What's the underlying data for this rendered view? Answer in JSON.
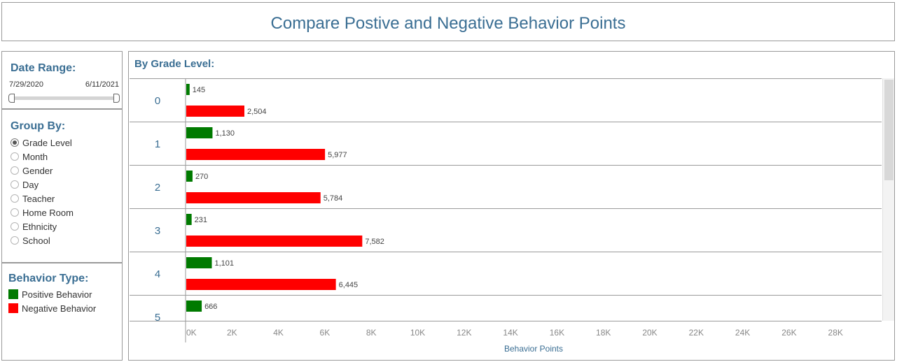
{
  "title": "Compare Postive and Negative Behavior Points",
  "date_range": {
    "label": "Date Range:",
    "start": "7/29/2020",
    "end": "6/11/2021",
    "selected_range": [
      0,
      1
    ]
  },
  "group_by": {
    "label": "Group By:",
    "options": [
      "Grade Level",
      "Month",
      "Gender",
      "Day",
      "Teacher",
      "Home Room",
      "Ethnicity",
      "School"
    ],
    "selected": "Grade Level"
  },
  "behavior_type": {
    "label": "Behavior Type:",
    "items": [
      {
        "label": "Positive Behavior",
        "color": "#007a00"
      },
      {
        "label": "Negative Behavior",
        "color": "#ff0000"
      }
    ]
  },
  "chart": {
    "subtitle": "By Grade Level:"
  },
  "scroll": {
    "thumb_fraction": 0.42,
    "position": 0
  },
  "chart_data": {
    "type": "bar",
    "orientation": "horizontal",
    "categories": [
      "0",
      "1",
      "2",
      "3",
      "4",
      "5"
    ],
    "series": [
      {
        "name": "Positive Behavior",
        "color": "#007a00",
        "values": [
          145,
          1130,
          270,
          231,
          1101,
          666
        ]
      },
      {
        "name": "Negative Behavior",
        "color": "#ff0000",
        "values": [
          2504,
          5977,
          5784,
          7582,
          6445,
          null
        ]
      }
    ],
    "data_labels": [
      [
        "145",
        "1,130",
        "270",
        "231",
        "1,101",
        "666"
      ],
      [
        "2,504",
        "5,977",
        "5,784",
        "7,582",
        "6,445",
        ""
      ]
    ],
    "xlabel": "Behavior Points",
    "ylabel": "",
    "xlim": [
      0,
      30000
    ],
    "xticks": [
      0,
      2000,
      4000,
      6000,
      8000,
      10000,
      12000,
      14000,
      16000,
      18000,
      20000,
      22000,
      24000,
      26000,
      28000
    ],
    "xtick_labels": [
      "0K",
      "2K",
      "4K",
      "6K",
      "8K",
      "10K",
      "12K",
      "14K",
      "16K",
      "18K",
      "20K",
      "22K",
      "24K",
      "26K",
      "28K"
    ],
    "grid": false
  }
}
